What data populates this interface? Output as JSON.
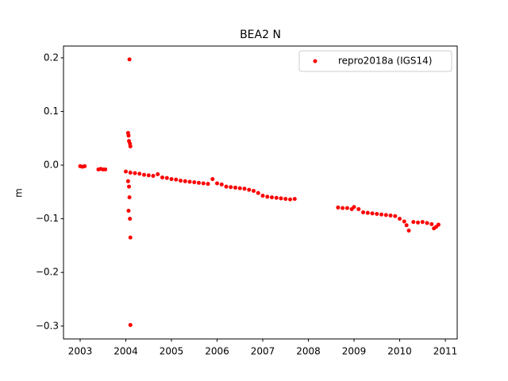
{
  "chart_data": {
    "type": "scatter",
    "title": "BEA2 N",
    "y_label": "m",
    "xlim": [
      2002.635,
      2011.26
    ],
    "ylim": [
      -0.324,
      0.222
    ],
    "xticks": [
      2003,
      2004,
      2005,
      2006,
      2007,
      2008,
      2009,
      2010,
      2011
    ],
    "yticks": [
      {
        "value": -0.3,
        "label": "−0.3"
      },
      {
        "value": -0.2,
        "label": "−0.2"
      },
      {
        "value": -0.1,
        "label": "−0.1"
      },
      {
        "value": 0,
        "label": "0.0"
      },
      0.1,
      0.2
    ],
    "legend_position": "upper right",
    "series": [
      {
        "name": "repro2018a (IGS14)",
        "color": "#ff0000",
        "x": [
          2003.0,
          2003.05,
          2003.1,
          2003.4,
          2003.45,
          2003.5,
          2003.55,
          2004.05,
          2004.06,
          2004.07,
          2004.08,
          2004.09,
          2004.1,
          2004.05,
          2004.07,
          2004.08,
          2004.06,
          2004.09,
          2004.1,
          2004.1,
          2004.0,
          2004.1,
          2004.2,
          2004.3,
          2004.4,
          2004.5,
          2004.6,
          2004.7,
          2004.8,
          2004.9,
          2005.0,
          2005.1,
          2005.2,
          2005.3,
          2005.4,
          2005.5,
          2005.6,
          2005.7,
          2005.8,
          2005.9,
          2006.0,
          2006.1,
          2006.2,
          2006.3,
          2006.4,
          2006.5,
          2006.6,
          2006.7,
          2006.8,
          2006.9,
          2007.0,
          2007.1,
          2007.2,
          2007.3,
          2007.4,
          2007.5,
          2007.6,
          2007.7,
          2008.65,
          2008.75,
          2008.85,
          2008.95,
          2009.0,
          2009.1,
          2009.2,
          2009.3,
          2009.4,
          2009.5,
          2009.6,
          2009.7,
          2009.8,
          2009.9,
          2010.0,
          2010.1,
          2010.15,
          2010.2,
          2010.3,
          2010.4,
          2010.5,
          2010.6,
          2010.7,
          2010.75,
          2010.8,
          2010.85
        ],
        "values": [
          -0.002,
          -0.003,
          -0.002,
          -0.008,
          -0.007,
          -0.008,
          -0.008,
          0.06,
          0.055,
          0.045,
          0.197,
          0.04,
          0.035,
          -0.03,
          -0.04,
          -0.06,
          -0.085,
          -0.1,
          -0.135,
          -0.298,
          -0.012,
          -0.014,
          -0.015,
          -0.016,
          -0.018,
          -0.019,
          -0.02,
          -0.017,
          -0.023,
          -0.024,
          -0.026,
          -0.027,
          -0.029,
          -0.03,
          -0.031,
          -0.032,
          -0.033,
          -0.034,
          -0.035,
          -0.026,
          -0.034,
          -0.036,
          -0.04,
          -0.041,
          -0.042,
          -0.043,
          -0.044,
          -0.046,
          -0.048,
          -0.052,
          -0.057,
          -0.059,
          -0.06,
          -0.061,
          -0.062,
          -0.063,
          -0.064,
          -0.063,
          -0.079,
          -0.08,
          -0.08,
          -0.082,
          -0.078,
          -0.082,
          -0.088,
          -0.089,
          -0.09,
          -0.091,
          -0.092,
          -0.093,
          -0.094,
          -0.095,
          -0.1,
          -0.105,
          -0.112,
          -0.122,
          -0.106,
          -0.107,
          -0.106,
          -0.108,
          -0.11,
          -0.118,
          -0.115,
          -0.111
        ]
      }
    ]
  }
}
